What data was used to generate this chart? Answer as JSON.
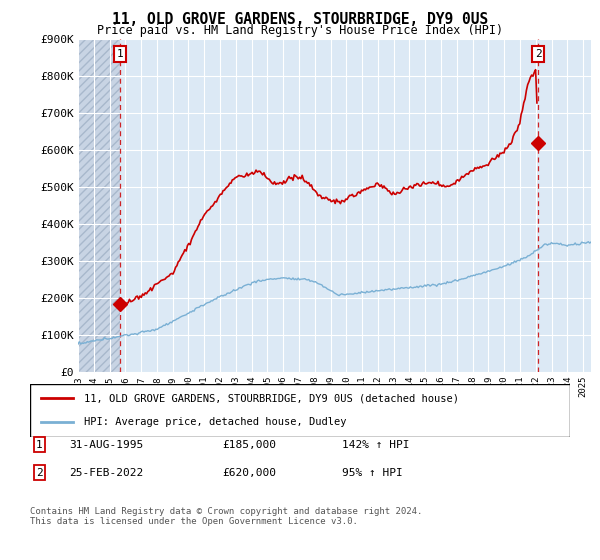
{
  "title": "11, OLD GROVE GARDENS, STOURBRIDGE, DY9 0US",
  "subtitle": "Price paid vs. HM Land Registry's House Price Index (HPI)",
  "ylim": [
    0,
    900000
  ],
  "yticks": [
    0,
    100000,
    200000,
    300000,
    400000,
    500000,
    600000,
    700000,
    800000,
    900000
  ],
  "ytick_labels": [
    "£0",
    "£100K",
    "£200K",
    "£300K",
    "£400K",
    "£500K",
    "£600K",
    "£700K",
    "£800K",
    "£900K"
  ],
  "xlim_start": 1993,
  "xlim_end": 2025.5,
  "hpi_color": "#7ab0d4",
  "price_color": "#cc0000",
  "bg_color": "#dce9f5",
  "hatch_color": "#c0c8d8",
  "grid_color": "#ffffff",
  "point1_x": 1995.667,
  "point1_y": 185000,
  "point2_x": 2022.15,
  "point2_y": 620000,
  "legend_label_price": "11, OLD GROVE GARDENS, STOURBRIDGE, DY9 0US (detached house)",
  "legend_label_hpi": "HPI: Average price, detached house, Dudley",
  "copyright": "Contains HM Land Registry data © Crown copyright and database right 2024.\nThis data is licensed under the Open Government Licence v3.0."
}
